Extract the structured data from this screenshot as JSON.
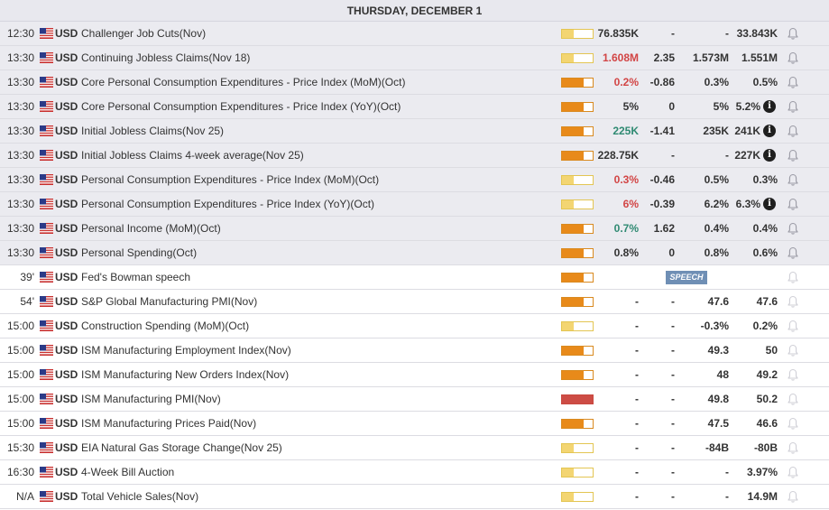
{
  "header": {
    "date_label": "THURSDAY, DECEMBER 1"
  },
  "colors": {
    "impact_low": "#f3d572",
    "impact_medium": "#e88a1a",
    "impact_high": "#cd4c45",
    "actual_worse": "#d24545",
    "actual_better": "#2f8a72",
    "speech_tag": "#6f8fb5"
  },
  "events": [
    {
      "time": "12:30",
      "currency": "USD",
      "name": "Challenger Job Cuts(Nov)",
      "impact": "low",
      "actual": "76.835K",
      "actual_color": "neutral",
      "deviation": "-",
      "previous": "-",
      "consensus": "33.843K",
      "info": false,
      "past": true,
      "flag": "us-flag-icon"
    },
    {
      "time": "13:30",
      "currency": "USD",
      "name": "Continuing Jobless Claims(Nov 18)",
      "impact": "low",
      "actual": "1.608M",
      "actual_color": "neg",
      "deviation": "2.35",
      "previous": "1.573M",
      "consensus": "1.551M",
      "info": false,
      "past": true,
      "flag": "us-flag-icon"
    },
    {
      "time": "13:30",
      "currency": "USD",
      "name": "Core Personal Consumption Expenditures - Price Index (MoM)(Oct)",
      "impact": "medium",
      "actual": "0.2%",
      "actual_color": "neg",
      "deviation": "-0.86",
      "previous": "0.3%",
      "consensus": "0.5%",
      "info": false,
      "past": true,
      "flag": "us-flag-icon"
    },
    {
      "time": "13:30",
      "currency": "USD",
      "name": "Core Personal Consumption Expenditures - Price Index (YoY)(Oct)",
      "impact": "medium",
      "actual": "5%",
      "actual_color": "neutral",
      "deviation": "0",
      "previous": "5%",
      "consensus": "5.2%",
      "info": true,
      "past": true,
      "flag": "us-flag-icon"
    },
    {
      "time": "13:30",
      "currency": "USD",
      "name": "Initial Jobless Claims(Nov 25)",
      "impact": "medium",
      "actual": "225K",
      "actual_color": "pos",
      "deviation": "-1.41",
      "previous": "235K",
      "consensus": "241K",
      "info": true,
      "past": true,
      "flag": "us-flag-icon"
    },
    {
      "time": "13:30",
      "currency": "USD",
      "name": "Initial Jobless Claims 4-week average(Nov 25)",
      "impact": "medium",
      "actual": "228.75K",
      "actual_color": "neutral",
      "deviation": "-",
      "previous": "-",
      "consensus": "227K",
      "info": true,
      "past": true,
      "flag": "us-flag-icon"
    },
    {
      "time": "13:30",
      "currency": "USD",
      "name": "Personal Consumption Expenditures - Price Index (MoM)(Oct)",
      "impact": "low",
      "actual": "0.3%",
      "actual_color": "neg",
      "deviation": "-0.46",
      "previous": "0.5%",
      "consensus": "0.3%",
      "info": false,
      "past": true,
      "flag": "us-flag-icon"
    },
    {
      "time": "13:30",
      "currency": "USD",
      "name": "Personal Consumption Expenditures - Price Index (YoY)(Oct)",
      "impact": "low",
      "actual": "6%",
      "actual_color": "neg",
      "deviation": "-0.39",
      "previous": "6.2%",
      "consensus": "6.3%",
      "info": true,
      "past": true,
      "flag": "us-flag-icon"
    },
    {
      "time": "13:30",
      "currency": "USD",
      "name": "Personal Income (MoM)(Oct)",
      "impact": "medium",
      "actual": "0.7%",
      "actual_color": "pos",
      "deviation": "1.62",
      "previous": "0.4%",
      "consensus": "0.4%",
      "info": false,
      "past": true,
      "flag": "us-flag-icon"
    },
    {
      "time": "13:30",
      "currency": "USD",
      "name": "Personal Spending(Oct)",
      "impact": "medium",
      "actual": "0.8%",
      "actual_color": "neutral",
      "deviation": "0",
      "previous": "0.8%",
      "consensus": "0.6%",
      "info": false,
      "past": true,
      "flag": "us-flag-icon"
    },
    {
      "time": "39'",
      "currency": "USD",
      "name": "Fed's Bowman speech",
      "impact": "medium",
      "actual": "",
      "actual_color": "neutral",
      "deviation": "",
      "previous": "",
      "consensus": "",
      "info": false,
      "past": false,
      "speech": "SPEECH",
      "flag": "us-flag-icon"
    },
    {
      "time": "54'",
      "currency": "USD",
      "name": "S&P Global Manufacturing PMI(Nov)",
      "impact": "medium",
      "actual": "-",
      "actual_color": "neutral",
      "deviation": "-",
      "previous": "47.6",
      "consensus": "47.6",
      "info": false,
      "past": false,
      "flag": "us-flag-icon"
    },
    {
      "time": "15:00",
      "currency": "USD",
      "name": "Construction Spending (MoM)(Oct)",
      "impact": "low",
      "actual": "-",
      "actual_color": "neutral",
      "deviation": "-",
      "previous": "-0.3%",
      "consensus": "0.2%",
      "info": false,
      "past": false,
      "flag": "us-flag-icon"
    },
    {
      "time": "15:00",
      "currency": "USD",
      "name": "ISM Manufacturing Employment Index(Nov)",
      "impact": "medium",
      "actual": "-",
      "actual_color": "neutral",
      "deviation": "-",
      "previous": "49.3",
      "consensus": "50",
      "info": false,
      "past": false,
      "flag": "us-flag-icon"
    },
    {
      "time": "15:00",
      "currency": "USD",
      "name": "ISM Manufacturing New Orders Index(Nov)",
      "impact": "medium",
      "actual": "-",
      "actual_color": "neutral",
      "deviation": "-",
      "previous": "48",
      "consensus": "49.2",
      "info": false,
      "past": false,
      "flag": "us-flag-icon"
    },
    {
      "time": "15:00",
      "currency": "USD",
      "name": "ISM Manufacturing PMI(Nov)",
      "impact": "high",
      "actual": "-",
      "actual_color": "neutral",
      "deviation": "-",
      "previous": "49.8",
      "consensus": "50.2",
      "info": false,
      "past": false,
      "flag": "us-flag-icon"
    },
    {
      "time": "15:00",
      "currency": "USD",
      "name": "ISM Manufacturing Prices Paid(Nov)",
      "impact": "medium",
      "actual": "-",
      "actual_color": "neutral",
      "deviation": "-",
      "previous": "47.5",
      "consensus": "46.6",
      "info": false,
      "past": false,
      "flag": "us-flag-icon"
    },
    {
      "time": "15:30",
      "currency": "USD",
      "name": "EIA Natural Gas Storage Change(Nov 25)",
      "impact": "low",
      "actual": "-",
      "actual_color": "neutral",
      "deviation": "-",
      "previous": "-84B",
      "consensus": "-80B",
      "info": false,
      "past": false,
      "flag": "us-flag-icon"
    },
    {
      "time": "16:30",
      "currency": "USD",
      "name": "4-Week Bill Auction",
      "impact": "low",
      "actual": "-",
      "actual_color": "neutral",
      "deviation": "-",
      "previous": "-",
      "consensus": "3.97%",
      "info": false,
      "past": false,
      "flag": "us-flag-icon"
    },
    {
      "time": "N/A",
      "currency": "USD",
      "name": "Total Vehicle Sales(Nov)",
      "impact": "low",
      "actual": "-",
      "actual_color": "neutral",
      "deviation": "-",
      "previous": "-",
      "consensus": "14.9M",
      "info": false,
      "past": false,
      "flag": "us-flag-icon"
    }
  ],
  "icons": {
    "info": "info-icon",
    "bell": "bell-icon",
    "info_glyph": "i"
  }
}
